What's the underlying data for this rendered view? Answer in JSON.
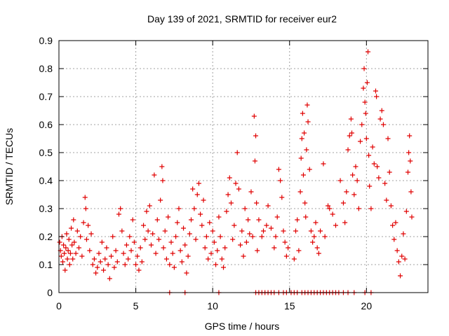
{
  "chart_data": {
    "type": "scatter",
    "title": "Day 139 of 2021, SRMTID for receiver eur2",
    "xlabel": "GPS time / hours",
    "ylabel": "SRMTID / TECUs",
    "xlim": [
      0,
      24
    ],
    "ylim": [
      0,
      0.9
    ],
    "xticks": [
      0,
      5,
      10,
      15,
      20
    ],
    "xtick_labels": [
      "0",
      "5",
      "10",
      "15",
      "20"
    ],
    "yticks": [
      0,
      0.1,
      0.2,
      0.3,
      0.4,
      0.5,
      0.6,
      0.7,
      0.8,
      0.9
    ],
    "ytick_labels": [
      "0",
      "0.1",
      "0.2",
      "0.3",
      "0.4",
      "0.5",
      "0.6",
      "0.7",
      "0.8",
      "0.9"
    ],
    "grid": true,
    "marker": "+",
    "color": "#e00000",
    "series": [
      {
        "name": "SRMTID",
        "points": [
          [
            0.05,
            0.18
          ],
          [
            0.1,
            0.15
          ],
          [
            0.15,
            0.13
          ],
          [
            0.2,
            0.2
          ],
          [
            0.25,
            0.11
          ],
          [
            0.3,
            0.17
          ],
          [
            0.35,
            0.14
          ],
          [
            0.4,
            0.08
          ],
          [
            0.45,
            0.16
          ],
          [
            0.5,
            0.21
          ],
          [
            0.55,
            0.12
          ],
          [
            0.6,
            0.15
          ],
          [
            0.65,
            0.19
          ],
          [
            0.7,
            0.1
          ],
          [
            0.75,
            0.14
          ],
          [
            0.8,
            0.23
          ],
          [
            0.85,
            0.17
          ],
          [
            0.9,
            0.12
          ],
          [
            0.95,
            0.26
          ],
          [
            1.0,
            0.18
          ],
          [
            1.1,
            0.14
          ],
          [
            1.2,
            0.22
          ],
          [
            1.3,
            0.16
          ],
          [
            1.4,
            0.2
          ],
          [
            1.5,
            0.13
          ],
          [
            1.6,
            0.25
          ],
          [
            1.7,
            0.34
          ],
          [
            1.75,
            0.3
          ],
          [
            1.8,
            0.19
          ],
          [
            1.9,
            0.24
          ],
          [
            2.0,
            0.15
          ],
          [
            2.1,
            0.21
          ],
          [
            2.2,
            0.1
          ],
          [
            2.3,
            0.12
          ],
          [
            2.4,
            0.07
          ],
          [
            2.5,
            0.09
          ],
          [
            2.6,
            0.14
          ],
          [
            2.7,
            0.11
          ],
          [
            2.8,
            0.18
          ],
          [
            2.9,
            0.08
          ],
          [
            3.0,
            0.12
          ],
          [
            3.1,
            0.16
          ],
          [
            3.2,
            0.1
          ],
          [
            3.3,
            0.05
          ],
          [
            3.4,
            0.13
          ],
          [
            3.5,
            0.2
          ],
          [
            3.6,
            0.09
          ],
          [
            3.7,
            0.15
          ],
          [
            3.8,
            0.11
          ],
          [
            3.9,
            0.28
          ],
          [
            4.0,
            0.3
          ],
          [
            4.1,
            0.22
          ],
          [
            4.2,
            0.14
          ],
          [
            4.3,
            0.1
          ],
          [
            4.4,
            0.17
          ],
          [
            4.5,
            0.12
          ],
          [
            4.6,
            0.2
          ],
          [
            4.7,
            0.15
          ],
          [
            4.8,
            0.26
          ],
          [
            4.9,
            0.18
          ],
          [
            5.0,
            0.1
          ],
          [
            5.1,
            0.13
          ],
          [
            5.2,
            0.08
          ],
          [
            5.3,
            0.16
          ],
          [
            5.4,
            0.11
          ],
          [
            5.5,
            0.24
          ],
          [
            5.6,
            0.19
          ],
          [
            5.7,
            0.29
          ],
          [
            5.8,
            0.22
          ],
          [
            5.9,
            0.31
          ],
          [
            6.0,
            0.17
          ],
          [
            6.1,
            0.21
          ],
          [
            6.2,
            0.42
          ],
          [
            6.3,
            0.14
          ],
          [
            6.4,
            0.26
          ],
          [
            6.5,
            0.19
          ],
          [
            6.6,
            0.33
          ],
          [
            6.7,
            0.45
          ],
          [
            6.75,
            0.4
          ],
          [
            6.8,
            0.16
          ],
          [
            6.9,
            0.22
          ],
          [
            7.0,
            0.12
          ],
          [
            7.1,
            0.27
          ],
          [
            7.2,
            0.1
          ],
          [
            7.3,
            0.18
          ],
          [
            7.4,
            0.14
          ],
          [
            7.5,
            0.09
          ],
          [
            7.6,
            0.2
          ],
          [
            7.7,
            0.25
          ],
          [
            7.8,
            0.3
          ],
          [
            7.9,
            0.15
          ],
          [
            8.0,
            0.11
          ],
          [
            8.1,
            0.23
          ],
          [
            8.2,
            0.17
          ],
          [
            8.3,
            0.07
          ],
          [
            8.4,
            0.13
          ],
          [
            8.5,
            0.21
          ],
          [
            8.6,
            0.26
          ],
          [
            8.7,
            0.37
          ],
          [
            8.8,
            0.3
          ],
          [
            8.9,
            0.19
          ],
          [
            9.0,
            0.35
          ],
          [
            9.1,
            0.39
          ],
          [
            9.2,
            0.28
          ],
          [
            9.3,
            0.24
          ],
          [
            9.4,
            0.33
          ],
          [
            9.5,
            0.16
          ],
          [
            9.6,
            0.2
          ],
          [
            9.7,
            0.12
          ],
          [
            9.8,
            0.25
          ],
          [
            9.9,
            0.14
          ],
          [
            10.0,
            0.22
          ],
          [
            10.1,
            0.18
          ],
          [
            10.2,
            0.1
          ],
          [
            10.3,
            0.15
          ],
          [
            10.4,
            0.27
          ],
          [
            10.5,
            0.2
          ],
          [
            10.6,
            0.12
          ],
          [
            10.7,
            0.09
          ],
          [
            10.8,
            0.16
          ],
          [
            10.9,
            0.29
          ],
          [
            11.0,
            0.35
          ],
          [
            11.1,
            0.41
          ],
          [
            11.2,
            0.32
          ],
          [
            11.3,
            0.19
          ],
          [
            11.4,
            0.24
          ],
          [
            11.5,
            0.39
          ],
          [
            11.6,
            0.5
          ],
          [
            11.7,
            0.37
          ],
          [
            11.8,
            0.17
          ],
          [
            11.9,
            0.22
          ],
          [
            12.0,
            0.13
          ],
          [
            12.1,
            0.3
          ],
          [
            12.2,
            0.18
          ],
          [
            12.3,
            0.26
          ],
          [
            12.4,
            0.21
          ],
          [
            12.5,
            0.36
          ],
          [
            12.6,
            0.2
          ],
          [
            12.7,
            0.63
          ],
          [
            12.8,
            0.56
          ],
          [
            12.75,
            0.47
          ],
          [
            12.85,
            0.32
          ],
          [
            12.9,
            0.15
          ],
          [
            13.0,
            0.26
          ],
          [
            13.2,
            0.2
          ],
          [
            13.3,
            0.22
          ],
          [
            13.5,
            0.24
          ],
          [
            13.6,
            0.31
          ],
          [
            13.8,
            0.23
          ],
          [
            14.0,
            0.16
          ],
          [
            14.1,
            0.2
          ],
          [
            14.2,
            0.27
          ],
          [
            14.3,
            0.44
          ],
          [
            14.4,
            0.4
          ],
          [
            14.5,
            0.34
          ],
          [
            14.6,
            0.22
          ],
          [
            14.7,
            0.18
          ],
          [
            14.8,
            0.13
          ],
          [
            14.9,
            0.16
          ],
          [
            15.3,
            0.12
          ],
          [
            15.4,
            0.22
          ],
          [
            15.5,
            0.26
          ],
          [
            15.6,
            0.15
          ],
          [
            15.7,
            0.36
          ],
          [
            15.75,
            0.48
          ],
          [
            15.8,
            0.55
          ],
          [
            15.85,
            0.64
          ],
          [
            15.9,
            0.42
          ],
          [
            15.95,
            0.57
          ],
          [
            16.0,
            0.32
          ],
          [
            16.05,
            0.27
          ],
          [
            16.1,
            0.51
          ],
          [
            16.15,
            0.67
          ],
          [
            16.2,
            0.61
          ],
          [
            16.3,
            0.44
          ],
          [
            16.4,
            0.22
          ],
          [
            16.5,
            0.18
          ],
          [
            16.6,
            0.2
          ],
          [
            16.7,
            0.25
          ],
          [
            16.8,
            0.16
          ],
          [
            16.9,
            0.14
          ],
          [
            17.0,
            0.22
          ],
          [
            17.2,
            0.46
          ],
          [
            17.3,
            0.2
          ],
          [
            17.5,
            0.31
          ],
          [
            17.6,
            0.3
          ],
          [
            17.8,
            0.28
          ],
          [
            18.0,
            0.24
          ],
          [
            18.3,
            0.4
          ],
          [
            18.5,
            0.32
          ],
          [
            18.6,
            0.25
          ],
          [
            18.7,
            0.36
          ],
          [
            18.8,
            0.51
          ],
          [
            18.9,
            0.56
          ],
          [
            19.0,
            0.62
          ],
          [
            19.05,
            0.57
          ],
          [
            19.1,
            0.42
          ],
          [
            19.2,
            0.35
          ],
          [
            19.3,
            0.45
          ],
          [
            19.4,
            0.4
          ],
          [
            19.5,
            0.3
          ],
          [
            19.6,
            0.54
          ],
          [
            19.7,
            0.6
          ],
          [
            19.8,
            0.73
          ],
          [
            19.85,
            0.8
          ],
          [
            19.9,
            0.68
          ],
          [
            19.95,
            0.64
          ],
          [
            20.0,
            0.55
          ],
          [
            20.05,
            0.75
          ],
          [
            20.1,
            0.86
          ],
          [
            20.15,
            0.49
          ],
          [
            20.2,
            0.38
          ],
          [
            20.3,
            0.3
          ],
          [
            20.4,
            0.52
          ],
          [
            20.5,
            0.46
          ],
          [
            20.6,
            0.72
          ],
          [
            20.65,
            0.7
          ],
          [
            20.7,
            0.45
          ],
          [
            20.8,
            0.41
          ],
          [
            20.9,
            0.62
          ],
          [
            21.0,
            0.65
          ],
          [
            21.1,
            0.6
          ],
          [
            21.2,
            0.39
          ],
          [
            21.3,
            0.33
          ],
          [
            21.4,
            0.55
          ],
          [
            21.5,
            0.43
          ],
          [
            21.6,
            0.31
          ],
          [
            21.7,
            0.24
          ],
          [
            21.8,
            0.19
          ],
          [
            21.9,
            0.25
          ],
          [
            22.0,
            0.15
          ],
          [
            22.1,
            0.11
          ],
          [
            22.2,
            0.06
          ],
          [
            22.3,
            0.13
          ],
          [
            22.4,
            0.21
          ],
          [
            22.5,
            0.12
          ],
          [
            22.6,
            0.29
          ],
          [
            22.7,
            0.43
          ],
          [
            22.75,
            0.5
          ],
          [
            22.8,
            0.56
          ],
          [
            22.85,
            0.47
          ],
          [
            22.9,
            0.36
          ],
          [
            22.95,
            0.27
          ],
          [
            7.2,
            0.0
          ],
          [
            8.2,
            0.0
          ],
          [
            10.4,
            0.0
          ],
          [
            12.8,
            0.0
          ],
          [
            13.0,
            0.0
          ],
          [
            13.2,
            0.0
          ],
          [
            13.4,
            0.0
          ],
          [
            13.6,
            0.0
          ],
          [
            13.8,
            0.0
          ],
          [
            14.0,
            0.0
          ],
          [
            14.3,
            0.0
          ],
          [
            14.6,
            0.0
          ],
          [
            14.8,
            0.0
          ],
          [
            15.1,
            0.0
          ],
          [
            15.3,
            0.0
          ],
          [
            15.5,
            0.0
          ],
          [
            15.8,
            0.0
          ],
          [
            16.0,
            0.0
          ],
          [
            16.2,
            0.0
          ],
          [
            16.4,
            0.0
          ],
          [
            16.6,
            0.0
          ],
          [
            16.8,
            0.0
          ],
          [
            17.0,
            0.0
          ],
          [
            17.2,
            0.0
          ],
          [
            17.4,
            0.0
          ],
          [
            17.6,
            0.0
          ],
          [
            17.8,
            0.0
          ],
          [
            18.0,
            0.0
          ],
          [
            18.2,
            0.0
          ],
          [
            18.5,
            0.0
          ],
          [
            18.8,
            0.0
          ],
          [
            19.2,
            0.0
          ],
          [
            19.9,
            0.0
          ],
          [
            20.3,
            0.0
          ]
        ]
      }
    ]
  }
}
